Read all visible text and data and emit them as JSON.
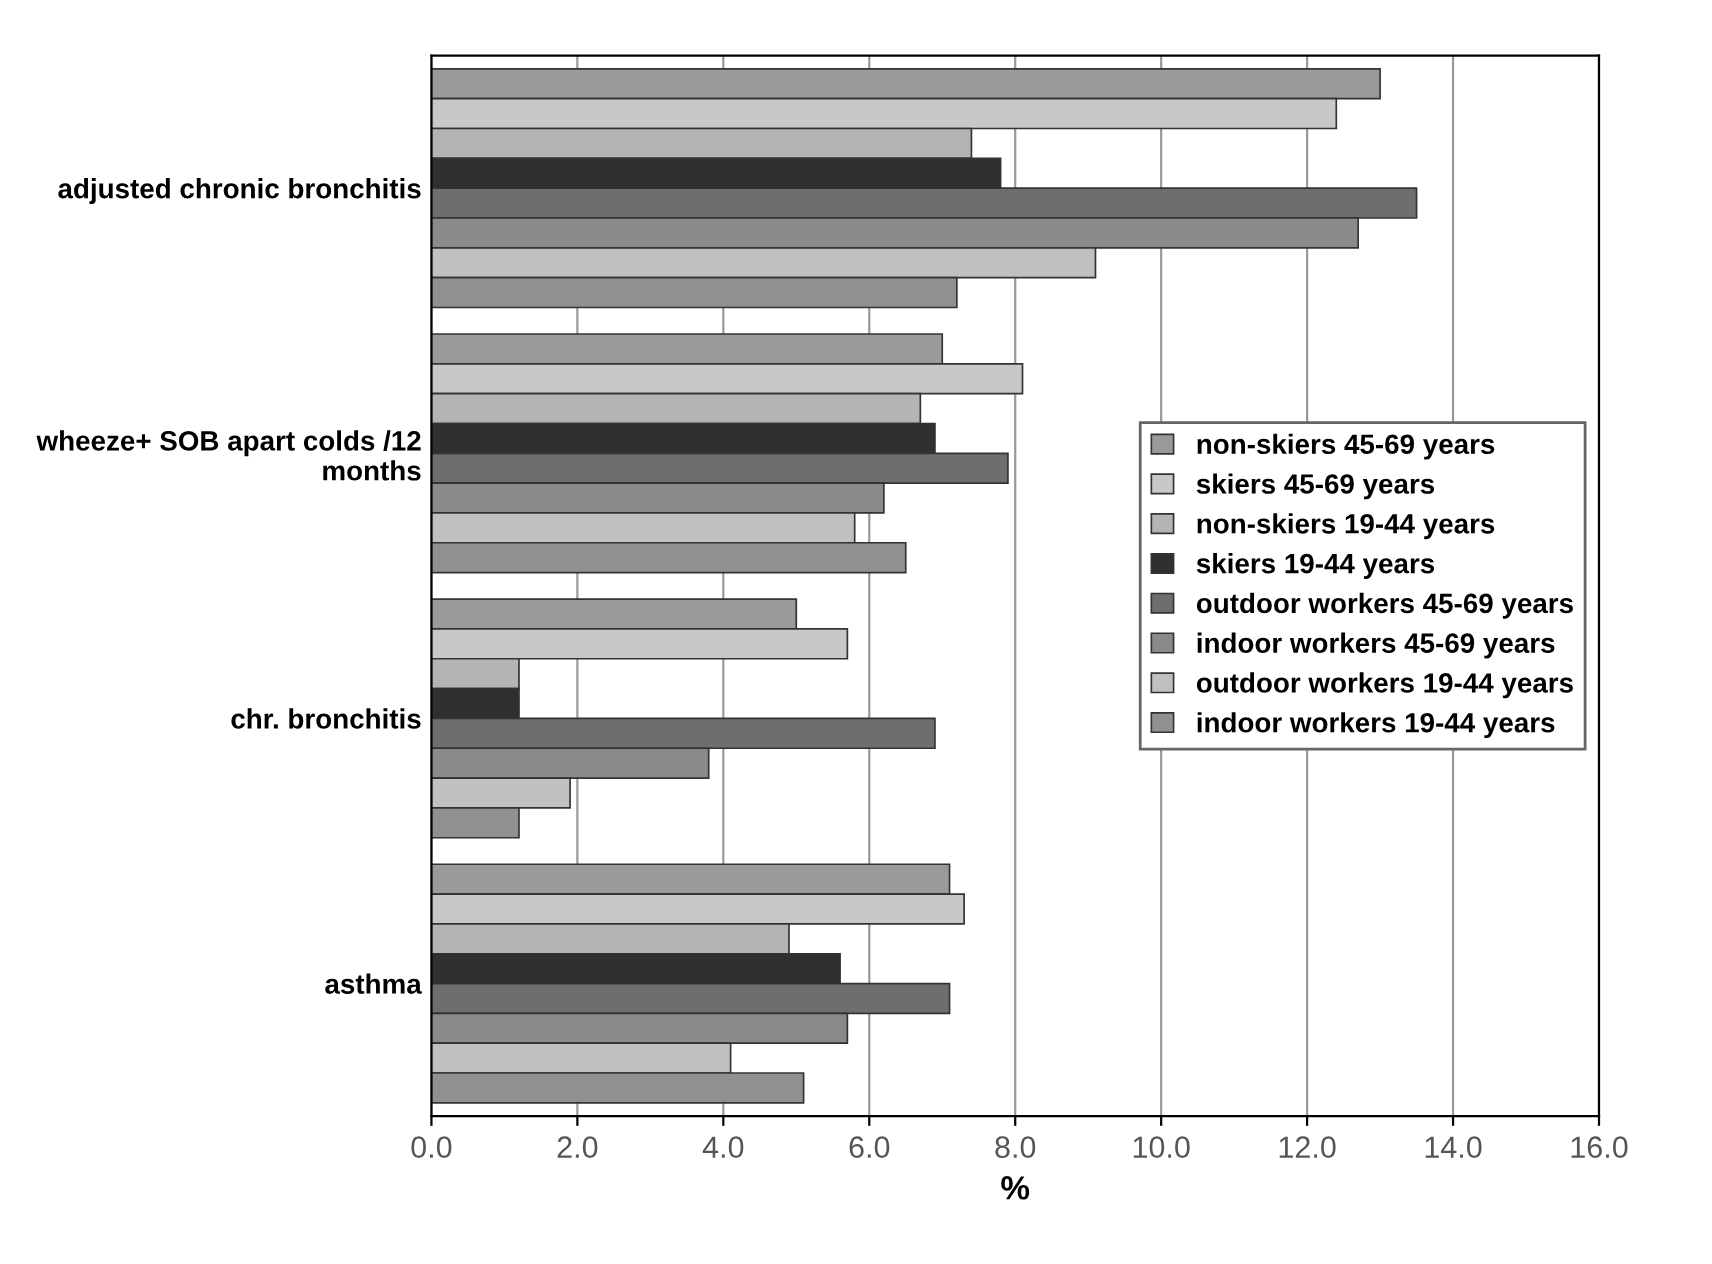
{
  "chart_data": {
    "type": "bar",
    "orientation": "horizontal",
    "xlabel": "%",
    "categories": [
      "adjusted chronic bronchitis",
      "wheeze+ SOB apart colds /12 months",
      "chr. bronchitis",
      "asthma"
    ],
    "series": [
      {
        "name": "non-skiers 45-69 years",
        "color": "#9a9a9a",
        "values": [
          13.0,
          7.0,
          5.0,
          7.1
        ]
      },
      {
        "name": "skiers 45-69 years",
        "color": "#c8c8c8",
        "values": [
          12.4,
          8.1,
          5.7,
          7.3
        ]
      },
      {
        "name": "non-skiers 19-44 years",
        "color": "#b4b4b4",
        "values": [
          7.4,
          6.7,
          1.2,
          4.9
        ]
      },
      {
        "name": "skiers 19-44 years",
        "color": "#303030",
        "values": [
          7.8,
          6.9,
          1.2,
          5.6
        ]
      },
      {
        "name": "outdoor workers 45-69 years",
        "color": "#6e6e6e",
        "values": [
          13.5,
          7.9,
          6.9,
          7.1
        ]
      },
      {
        "name": "indoor workers 45-69 years",
        "color": "#8a8a8a",
        "values": [
          12.7,
          6.2,
          3.8,
          5.7
        ]
      },
      {
        "name": "outdoor workers 19-44 years",
        "color": "#c0c0c0",
        "values": [
          9.1,
          5.8,
          1.9,
          4.1
        ]
      },
      {
        "name": "indoor workers 19-44 years",
        "color": "#909090",
        "values": [
          7.2,
          6.5,
          1.2,
          5.1
        ]
      }
    ],
    "xlim": [
      0,
      16
    ],
    "xticks": [
      {
        "value": 0,
        "label": "0.0"
      },
      {
        "value": 2,
        "label": "2.0"
      },
      {
        "value": 4,
        "label": "4.0"
      },
      {
        "value": 6,
        "label": "6.0"
      },
      {
        "value": 8,
        "label": "8.0"
      },
      {
        "value": 10,
        "label": "10.0"
      },
      {
        "value": 12,
        "label": "12.0"
      },
      {
        "value": 14,
        "label": "14.0"
      },
      {
        "value": 16,
        "label": "16.0"
      }
    ],
    "grid": "x",
    "legend": "center right"
  }
}
